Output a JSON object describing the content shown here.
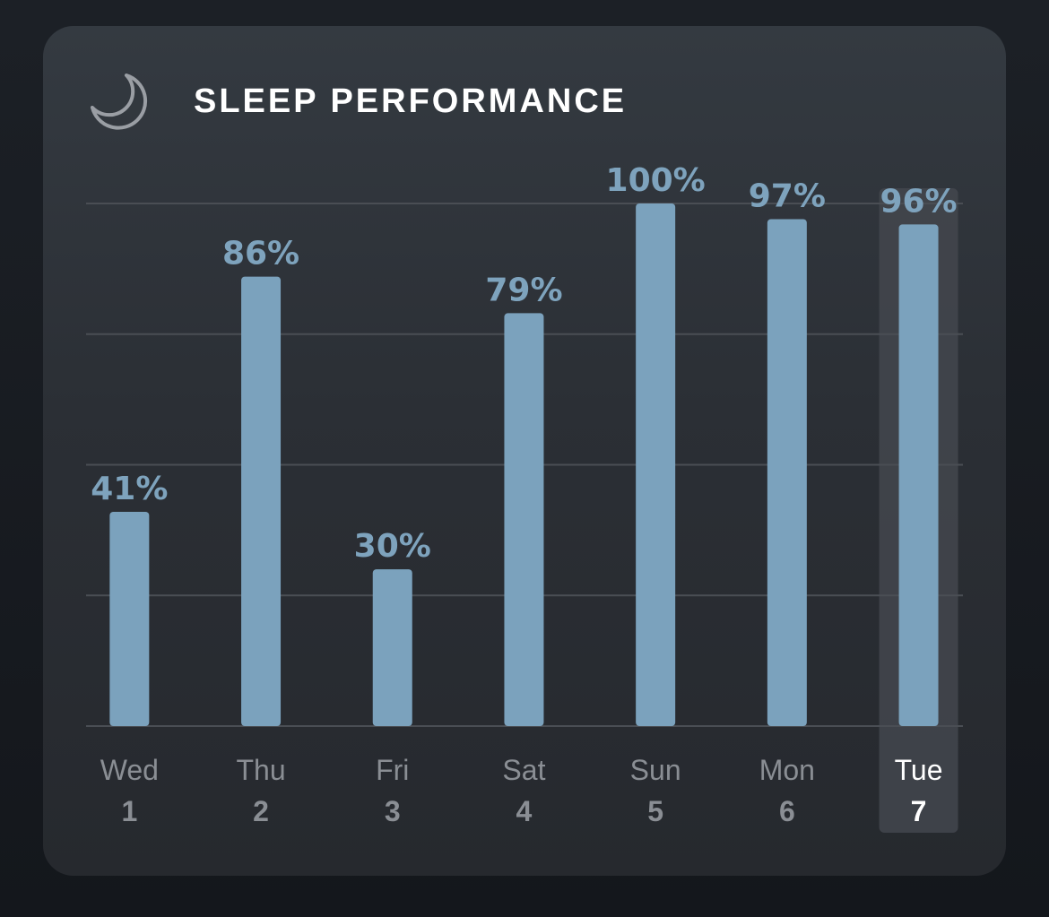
{
  "header": {
    "title": "SLEEP PERFORMANCE",
    "icon": "moon-icon"
  },
  "colors": {
    "bar": "#7ba2bd",
    "label": "#7ea3bd",
    "gridline": "#4a4e54",
    "axis_text": "#8a8e94",
    "selected_text": "#ffffff",
    "selected_bg": "#43474d"
  },
  "chart_data": {
    "type": "bar",
    "title": "SLEEP PERFORMANCE",
    "categories": [
      "Wed",
      "Thu",
      "Fri",
      "Sat",
      "Sun",
      "Mon",
      "Tue"
    ],
    "dates": [
      "1",
      "2",
      "3",
      "4",
      "5",
      "6",
      "7"
    ],
    "values": [
      41,
      86,
      30,
      79,
      100,
      97,
      96
    ],
    "value_labels": [
      "41%",
      "86%",
      "30%",
      "79%",
      "100%",
      "97%",
      "96%"
    ],
    "ylim": [
      0,
      100
    ],
    "grid": true,
    "selected_index": 6,
    "xlabel": "",
    "ylabel": ""
  }
}
